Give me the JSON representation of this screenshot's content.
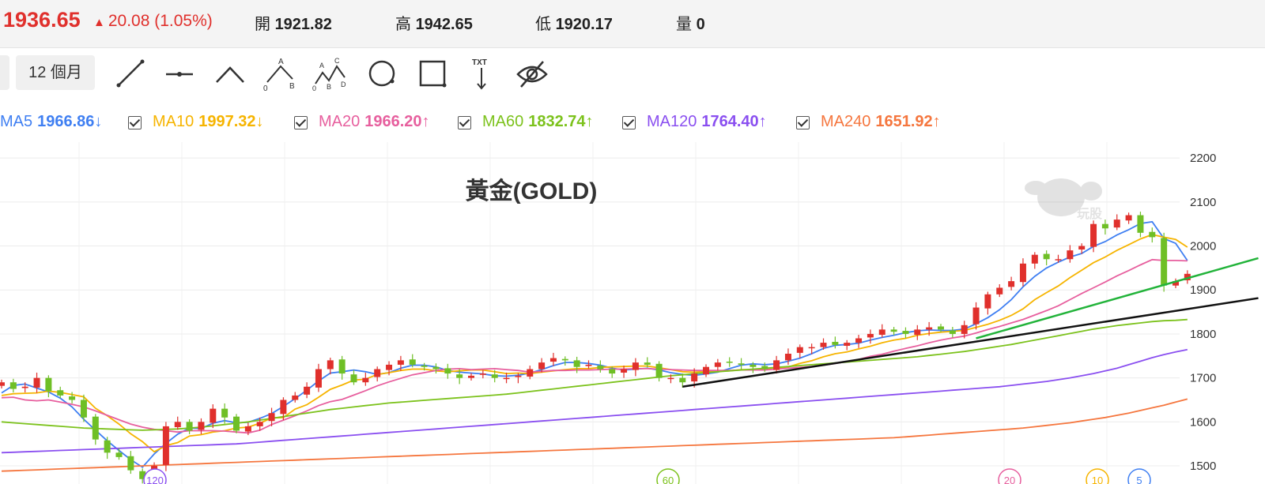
{
  "quote": {
    "price": "1936.65",
    "change": "20.08 (1.05%)",
    "open_label": "開",
    "open": "1921.82",
    "high_label": "高",
    "high": "1942.65",
    "low_label": "低",
    "low": "1920.17",
    "volume_label": "量",
    "volume": "0",
    "up_color": "#e0302c"
  },
  "toolbar": {
    "period": "12 個月",
    "tools": [
      "trendline-icon",
      "horizontal-line-icon",
      "polyline-icon",
      "abc-pattern-icon",
      "abcd-pattern-icon",
      "circle-icon",
      "rectangle-icon",
      "text-icon",
      "hide-icon"
    ],
    "abc_label": "A B 0",
    "abcd_label": "A B C D 0",
    "txt_label": "TXT"
  },
  "moving_averages": [
    {
      "name": "MA5",
      "value": "1966.86",
      "arrow": "↓",
      "color": "#3f7ff2"
    },
    {
      "name": "MA10",
      "value": "1997.32",
      "arrow": "↓",
      "color": "#f6b400"
    },
    {
      "name": "MA20",
      "value": "1966.20",
      "arrow": "↑",
      "color": "#e75f9e"
    },
    {
      "name": "MA60",
      "value": "1832.74",
      "arrow": "↑",
      "color": "#7cc21c"
    },
    {
      "name": "MA120",
      "value": "1764.40",
      "arrow": "↑",
      "color": "#8a4ff0"
    },
    {
      "name": "MA240",
      "value": "1651.92",
      "arrow": "↑",
      "color": "#f5763e"
    }
  ],
  "chart_data": {
    "type": "candlestick",
    "title": "黃金(GOLD)",
    "ylim": [
      1480,
      2220
    ],
    "yticks": [
      1500,
      1600,
      1700,
      1800,
      1900,
      2000,
      2100,
      2200
    ],
    "grid": true,
    "up_color": "#e0302c",
    "down_color": "#6fbf26",
    "watermark": "玩股",
    "period_markers": [
      {
        "label": "120",
        "color": "#8a4ff0"
      },
      {
        "label": "60",
        "color": "#7cc21c"
      },
      {
        "label": "20",
        "color": "#e75f9e"
      },
      {
        "label": "10",
        "color": "#f6b400"
      },
      {
        "label": "5",
        "color": "#3f7ff2"
      }
    ],
    "closes": [
      1690,
      1675,
      1680,
      1700,
      1670,
      1660,
      1650,
      1610,
      1560,
      1530,
      1520,
      1490,
      1470,
      1500,
      1590,
      1600,
      1580,
      1600,
      1630,
      1610,
      1580,
      1590,
      1600,
      1620,
      1650,
      1660,
      1680,
      1720,
      1740,
      1710,
      1690,
      1700,
      1720,
      1730,
      1740,
      1730,
      1725,
      1720,
      1710,
      1700,
      1705,
      1710,
      1700,
      1700,
      1705,
      1720,
      1735,
      1745,
      1740,
      1725,
      1730,
      1720,
      1710,
      1720,
      1735,
      1730,
      1700,
      1700,
      1690,
      1710,
      1725,
      1735,
      1735,
      1730,
      1725,
      1720,
      1740,
      1755,
      1770,
      1770,
      1780,
      1775,
      1780,
      1790,
      1800,
      1810,
      1805,
      1800,
      1810,
      1815,
      1810,
      1800,
      1820,
      1860,
      1890,
      1905,
      1920,
      1960,
      1980,
      1970,
      1970,
      1990,
      2000,
      2050,
      2040,
      2060,
      2070,
      2030,
      2020,
      1910,
      1920,
      1936.65
    ],
    "ma_series": {
      "MA5": [
        1666,
        1683,
        1686,
        1677,
        1668,
        1654,
        1634,
        1606,
        1581,
        1557,
        1535,
        1514,
        1497,
        1527,
        1551,
        1572,
        1586,
        1585,
        1597,
        1603,
        1598,
        1599,
        1608,
        1619,
        1635,
        1653,
        1672,
        1693,
        1711,
        1714,
        1718,
        1714,
        1708,
        1712,
        1722,
        1729,
        1729,
        1725,
        1717,
        1713,
        1711,
        1709,
        1705,
        1704,
        1706,
        1711,
        1719,
        1728,
        1735,
        1735,
        1733,
        1729,
        1722,
        1718,
        1720,
        1722,
        1718,
        1712,
        1708,
        1706,
        1709,
        1713,
        1721,
        1729,
        1732,
        1730,
        1732,
        1738,
        1745,
        1755,
        1767,
        1774,
        1776,
        1779,
        1786,
        1792,
        1797,
        1803,
        1807,
        1809,
        1808,
        1808,
        1811,
        1823,
        1837,
        1855,
        1878,
        1907,
        1931,
        1950,
        1963,
        1975,
        1983,
        1999,
        2010,
        2025,
        2037,
        2051,
        2055,
        2017,
        2006,
        1966.86
      ],
      "MA10": [
        1660,
        1664,
        1665,
        1666,
        1670,
        1667,
        1662,
        1657,
        1631,
        1614,
        1595,
        1573,
        1555,
        1532,
        1546,
        1553,
        1568,
        1571,
        1577,
        1580,
        1586,
        1588,
        1597,
        1609,
        1610,
        1629,
        1639,
        1656,
        1674,
        1684,
        1695,
        1697,
        1708,
        1712,
        1717,
        1720,
        1720,
        1716,
        1714,
        1716,
        1718,
        1718,
        1714,
        1710,
        1711,
        1710,
        1713,
        1716,
        1719,
        1721,
        1721,
        1724,
        1725,
        1726,
        1727,
        1727,
        1723,
        1719,
        1714,
        1713,
        1715,
        1715,
        1716,
        1719,
        1719,
        1719,
        1722,
        1725,
        1733,
        1739,
        1748,
        1755,
        1759,
        1766,
        1772,
        1780,
        1786,
        1790,
        1797,
        1801,
        1804,
        1806,
        1808,
        1815,
        1822,
        1831,
        1842,
        1857,
        1878,
        1894,
        1909,
        1928,
        1945,
        1962,
        1975,
        1990,
        2003,
        2016,
        2026,
        2020,
        2015,
        1997.32
      ],
      "MA20": [
        1655,
        1656,
        1650,
        1648,
        1650,
        1645,
        1640,
        1634,
        1625,
        1615,
        1605,
        1595,
        1588,
        1583,
        1580,
        1577,
        1580,
        1580,
        1580,
        1579,
        1577,
        1575,
        1581,
        1594,
        1604,
        1614,
        1625,
        1637,
        1646,
        1651,
        1661,
        1671,
        1682,
        1691,
        1699,
        1707,
        1712,
        1717,
        1720,
        1721,
        1719,
        1720,
        1721,
        1719,
        1717,
        1713,
        1715,
        1717,
        1717,
        1718,
        1718,
        1719,
        1720,
        1720,
        1721,
        1721,
        1720,
        1719,
        1718,
        1717,
        1717,
        1717,
        1717,
        1718,
        1718,
        1718,
        1720,
        1722,
        1724,
        1726,
        1729,
        1733,
        1737,
        1742,
        1749,
        1754,
        1761,
        1767,
        1773,
        1780,
        1786,
        1791,
        1795,
        1802,
        1810,
        1817,
        1825,
        1833,
        1843,
        1853,
        1864,
        1878,
        1892,
        1905,
        1918,
        1932,
        1944,
        1957,
        1969,
        1967,
        1967,
        1966.2
      ],
      "MA60": [
        1600,
        1598,
        1596,
        1594,
        1592,
        1590,
        1588,
        1586,
        1585,
        1584,
        1583,
        1582,
        1581,
        1582,
        1583,
        1584,
        1586,
        1588,
        1591,
        1594,
        1597,
        1600,
        1604,
        1608,
        1612,
        1616,
        1620,
        1624,
        1628,
        1631,
        1634,
        1637,
        1640,
        1643,
        1645,
        1647,
        1649,
        1651,
        1653,
        1655,
        1657,
        1659,
        1661,
        1663,
        1666,
        1669,
        1672,
        1675,
        1678,
        1681,
        1684,
        1687,
        1690,
        1693,
        1696,
        1699,
        1702,
        1705,
        1707,
        1710,
        1712,
        1714,
        1716,
        1718,
        1720,
        1722,
        1724,
        1726,
        1728,
        1730,
        1732,
        1734,
        1736,
        1738,
        1740,
        1742,
        1744,
        1746,
        1748,
        1751,
        1754,
        1757,
        1760,
        1764,
        1768,
        1772,
        1776,
        1781,
        1786,
        1791,
        1796,
        1801,
        1806,
        1811,
        1815,
        1819,
        1822,
        1825,
        1828,
        1830,
        1831,
        1832.74
      ],
      "MA120": [
        1530,
        1531,
        1532,
        1533,
        1534,
        1535,
        1536,
        1537,
        1538,
        1539,
        1540,
        1541,
        1542,
        1543,
        1544,
        1545,
        1546,
        1547,
        1548,
        1549,
        1550,
        1552,
        1554,
        1556,
        1558,
        1560,
        1562,
        1564,
        1566,
        1568,
        1570,
        1572,
        1574,
        1576,
        1578,
        1580,
        1582,
        1584,
        1586,
        1588,
        1590,
        1592,
        1594,
        1596,
        1598,
        1600,
        1602,
        1604,
        1606,
        1608,
        1610,
        1612,
        1614,
        1616,
        1618,
        1620,
        1622,
        1624,
        1626,
        1628,
        1630,
        1632,
        1634,
        1636,
        1638,
        1640,
        1642,
        1644,
        1646,
        1648,
        1650,
        1652,
        1654,
        1656,
        1658,
        1660,
        1662,
        1664,
        1666,
        1668,
        1670,
        1672,
        1674,
        1676,
        1678,
        1680,
        1683,
        1686,
        1689,
        1692,
        1696,
        1700,
        1705,
        1710,
        1716,
        1722,
        1730,
        1738,
        1746,
        1753,
        1759,
        1764.4
      ],
      "MA240": [
        1488,
        1489,
        1490,
        1491,
        1492,
        1493,
        1494,
        1495,
        1496,
        1497,
        1498,
        1499,
        1500,
        1501,
        1502,
        1503,
        1504,
        1505,
        1506,
        1507,
        1508,
        1509,
        1510,
        1511,
        1512,
        1513,
        1514,
        1515,
        1516,
        1517,
        1518,
        1519,
        1520,
        1521,
        1522,
        1523,
        1524,
        1525,
        1526,
        1527,
        1528,
        1529,
        1530,
        1531,
        1532,
        1533,
        1534,
        1535,
        1536,
        1537,
        1538,
        1539,
        1540,
        1541,
        1542,
        1543,
        1544,
        1545,
        1546,
        1547,
        1548,
        1549,
        1550,
        1551,
        1552,
        1553,
        1554,
        1555,
        1556,
        1557,
        1558,
        1559,
        1560,
        1561,
        1562,
        1563,
        1564,
        1566,
        1568,
        1570,
        1572,
        1574,
        1576,
        1578,
        1580,
        1582,
        1584,
        1586,
        1589,
        1592,
        1595,
        1598,
        1602,
        1606,
        1610,
        1615,
        1620,
        1626,
        1632,
        1638,
        1645,
        1651.92
      ]
    },
    "trendlines": [
      {
        "name": "black-support",
        "color": "#111111",
        "from": [
          58,
          1680
        ],
        "to": [
          103,
          1865
        ]
      },
      {
        "name": "green-support",
        "color": "#22b33a",
        "from": [
          83,
          1790
        ],
        "to": [
          103,
          1942
        ]
      }
    ]
  }
}
